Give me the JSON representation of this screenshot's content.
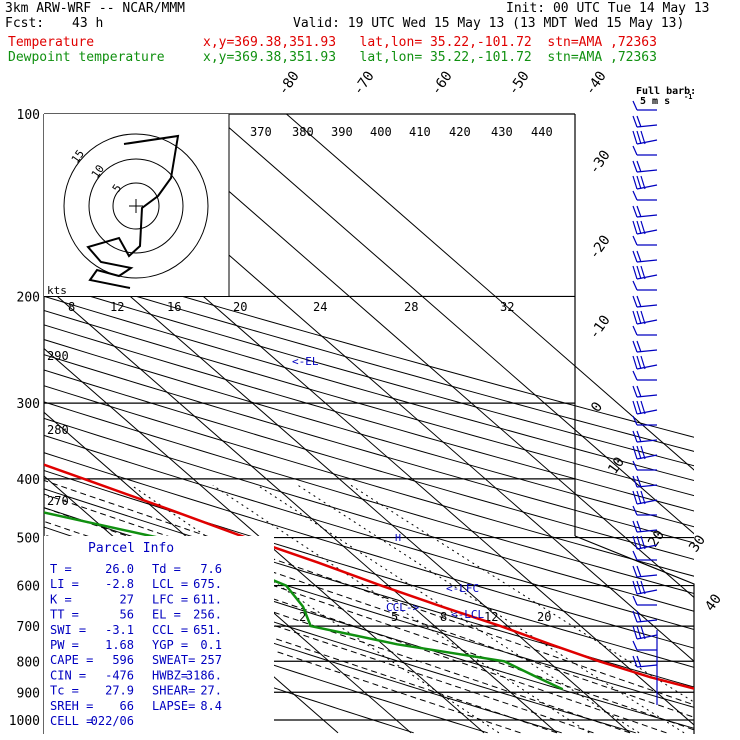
{
  "header": {
    "model": "3km ARW-WRF -- NCAR/MMM",
    "init": "Init: 00 UTC Tue 14 May 13",
    "fcst_label": "Fcst:",
    "fcst_hours": "43 h",
    "valid": "Valid: 19 UTC Wed 15 May 13 (13 MDT Wed 15 May 13)",
    "temp_label": "Temperature",
    "temp_loc": "x,y=369.38,351.93   lat,lon= 35.22,-101.72  stn=AMA ,72363",
    "dew_label": "Dewpoint temperature",
    "dew_loc": "x,y=369.38,351.93   lat,lon= 35.22,-101.72  stn=AMA ,72363"
  },
  "colors": {
    "temperature": "#e00000",
    "dewpoint": "#109010",
    "wind": "#0000c0",
    "grid": "#000000"
  },
  "chart_data": {
    "type": "line",
    "pressure_levels": [
      "100",
      "200",
      "300",
      "400",
      "500",
      "600",
      "700",
      "800",
      "900",
      "1000"
    ],
    "isotherm_labels": [
      "-80",
      "-70",
      "-60",
      "-50",
      "-40",
      "-30",
      "-20",
      "-10",
      "0",
      "10",
      "20",
      "30",
      "40"
    ],
    "theta_labels": [
      "370",
      "380",
      "390",
      "400",
      "410",
      "420",
      "430",
      "440"
    ],
    "mixing_ratio_labels": [
      "8",
      "12",
      "16",
      "20",
      "24",
      "28",
      "32"
    ],
    "mixing_ratio_low_labels": [
      "2",
      "5",
      "8",
      "12",
      "20"
    ],
    "dry_adiabat_labels": [
      "290",
      "280",
      "270"
    ],
    "full_barb_label": "Full barb:",
    "full_barb_value": "5 m s",
    "full_barb_exp": "-1",
    "hodograph": {
      "kts_label": "kts",
      "rings": [
        "5",
        "10",
        "15"
      ]
    },
    "annotations": {
      "el": "<-EL",
      "lfc": "<-LFC",
      "lcl": "<-LCL",
      "ccl": "CCL->",
      "h": "H"
    },
    "temperature": [
      {
        "p": 890,
        "t": 26
      },
      {
        "p": 850,
        "t": 21.5
      },
      {
        "p": 800,
        "t": 17
      },
      {
        "p": 750,
        "t": 13
      },
      {
        "p": 700,
        "t": 9
      },
      {
        "p": 650,
        "t": 4
      },
      {
        "p": 600,
        "t": -1
      },
      {
        "p": 550,
        "t": -6
      },
      {
        "p": 500,
        "t": -12
      },
      {
        "p": 450,
        "t": -18
      },
      {
        "p": 400,
        "t": -25
      },
      {
        "p": 350,
        "t": -33
      },
      {
        "p": 300,
        "t": -42
      },
      {
        "p": 270,
        "t": -48.5
      },
      {
        "p": 250,
        "t": -52
      },
      {
        "p": 220,
        "t": -55
      },
      {
        "p": 200,
        "t": -56
      },
      {
        "p": 180,
        "t": -58
      },
      {
        "p": 160,
        "t": -61
      },
      {
        "p": 140,
        "t": -63
      },
      {
        "p": 120,
        "t": -63
      },
      {
        "p": 100,
        "t": -63
      }
    ],
    "dewpoint": [
      {
        "p": 890,
        "t": 7.6
      },
      {
        "p": 850,
        "t": 6
      },
      {
        "p": 800,
        "t": 4
      },
      {
        "p": 750,
        "t": -8
      },
      {
        "p": 700,
        "t": -17
      },
      {
        "p": 650,
        "t": -15
      },
      {
        "p": 600,
        "t": -14
      },
      {
        "p": 550,
        "t": -18
      },
      {
        "p": 500,
        "t": -24
      },
      {
        "p": 450,
        "t": -37
      },
      {
        "p": 400,
        "t": -48
      },
      {
        "p": 370,
        "t": -58
      },
      {
        "p": 350,
        "t": -60
      },
      {
        "p": 320,
        "t": -47
      },
      {
        "p": 300,
        "t": -37
      },
      {
        "p": 280,
        "t": -40
      },
      {
        "p": 250,
        "t": -58
      },
      {
        "p": 220,
        "t": -68
      },
      {
        "p": 200,
        "t": -72
      },
      {
        "p": 180,
        "t": -74
      },
      {
        "p": 160,
        "t": -75
      },
      {
        "p": 140,
        "t": -79
      },
      {
        "p": 120,
        "t": -82
      },
      {
        "p": 100,
        "t": -83
      }
    ],
    "parcel_info": {
      "title": "Parcel Info",
      "rows": [
        [
          "T  =",
          "26.0",
          "Td =",
          "7.6"
        ],
        [
          "LI =",
          "-2.8",
          "LCL =",
          "675."
        ],
        [
          "K  =",
          "27",
          "LFC =",
          "611."
        ],
        [
          "TT =",
          "56",
          "EL =",
          "256."
        ],
        [
          "SWI =",
          "-3.1",
          "CCL =",
          "651."
        ],
        [
          "PW =",
          "1.68",
          "YGP =",
          "0.1"
        ],
        [
          "CAPE =",
          "596",
          "SWEAT=",
          "257"
        ],
        [
          "CIN =",
          "-476",
          "HWBZ=",
          "3186."
        ],
        [
          "Tc =",
          "27.9",
          "SHEAR=",
          "27."
        ],
        [
          "SREH =",
          "66",
          "LAPSE=",
          "8.4"
        ],
        [
          "CELL =",
          "022/06",
          "",
          ""
        ]
      ]
    }
  }
}
